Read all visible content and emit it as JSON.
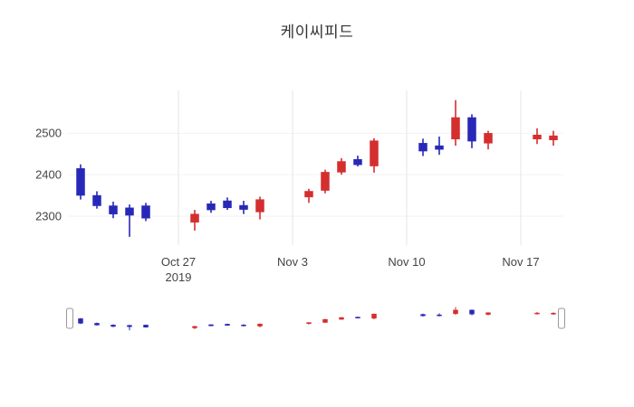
{
  "chart_data": {
    "type": "candlestick",
    "title": "케이씨피드",
    "xlabel": "",
    "ylabel": "",
    "grid": true,
    "rangeslider": true,
    "colors": {
      "up": "#d42e2e",
      "down": "#2828b8",
      "grid": "#e6e6e6",
      "hgrid": "#f2f2f2",
      "tick_text": "#444444",
      "title_text": "#333333",
      "handle_border": "#999999"
    },
    "y_range": [
      2230,
      2610
    ],
    "x_range": [
      "2019-10-21",
      "2019-11-19"
    ],
    "yticks": [
      {
        "value": 2500,
        "label": "2500"
      },
      {
        "value": 2400,
        "label": "2400"
      },
      {
        "value": 2300,
        "label": "2300"
      }
    ],
    "xticks": [
      {
        "date": "2019-10-27",
        "label": "Oct 27",
        "sublabel": "2019"
      },
      {
        "date": "2019-11-03",
        "label": "Nov 3",
        "sublabel": ""
      },
      {
        "date": "2019-11-10",
        "label": "Nov 10",
        "sublabel": ""
      },
      {
        "date": "2019-11-17",
        "label": "Nov 17",
        "sublabel": ""
      }
    ],
    "candles": [
      {
        "date": "2019-10-21",
        "open": 2415,
        "high": 2425,
        "low": 2340,
        "close": 2350
      },
      {
        "date": "2019-10-22",
        "open": 2350,
        "high": 2360,
        "low": 2318,
        "close": 2325
      },
      {
        "date": "2019-10-23",
        "open": 2325,
        "high": 2335,
        "low": 2295,
        "close": 2305
      },
      {
        "date": "2019-10-24",
        "open": 2320,
        "high": 2328,
        "low": 2250,
        "close": 2302
      },
      {
        "date": "2019-10-25",
        "open": 2325,
        "high": 2332,
        "low": 2288,
        "close": 2295
      },
      {
        "date": "2019-10-28",
        "open": 2285,
        "high": 2315,
        "low": 2265,
        "close": 2305
      },
      {
        "date": "2019-10-29",
        "open": 2330,
        "high": 2337,
        "low": 2308,
        "close": 2315
      },
      {
        "date": "2019-10-30",
        "open": 2337,
        "high": 2345,
        "low": 2315,
        "close": 2320
      },
      {
        "date": "2019-10-31",
        "open": 2326,
        "high": 2337,
        "low": 2305,
        "close": 2316
      },
      {
        "date": "2019-11-01",
        "open": 2310,
        "high": 2347,
        "low": 2292,
        "close": 2340
      },
      {
        "date": "2019-11-04",
        "open": 2346,
        "high": 2366,
        "low": 2332,
        "close": 2360
      },
      {
        "date": "2019-11-05",
        "open": 2362,
        "high": 2412,
        "low": 2355,
        "close": 2406
      },
      {
        "date": "2019-11-06",
        "open": 2406,
        "high": 2440,
        "low": 2400,
        "close": 2432
      },
      {
        "date": "2019-11-07",
        "open": 2437,
        "high": 2446,
        "low": 2420,
        "close": 2424
      },
      {
        "date": "2019-11-08",
        "open": 2421,
        "high": 2488,
        "low": 2405,
        "close": 2482
      },
      {
        "date": "2019-11-11",
        "open": 2476,
        "high": 2487,
        "low": 2445,
        "close": 2457
      },
      {
        "date": "2019-11-12",
        "open": 2470,
        "high": 2492,
        "low": 2448,
        "close": 2461
      },
      {
        "date": "2019-11-13",
        "open": 2486,
        "high": 2580,
        "low": 2470,
        "close": 2538
      },
      {
        "date": "2019-11-14",
        "open": 2538,
        "high": 2546,
        "low": 2464,
        "close": 2481
      },
      {
        "date": "2019-11-15",
        "open": 2476,
        "high": 2506,
        "low": 2461,
        "close": 2500
      },
      {
        "date": "2019-11-18",
        "open": 2486,
        "high": 2512,
        "low": 2474,
        "close": 2496
      },
      {
        "date": "2019-11-19",
        "open": 2484,
        "high": 2506,
        "low": 2470,
        "close": 2494
      }
    ]
  }
}
